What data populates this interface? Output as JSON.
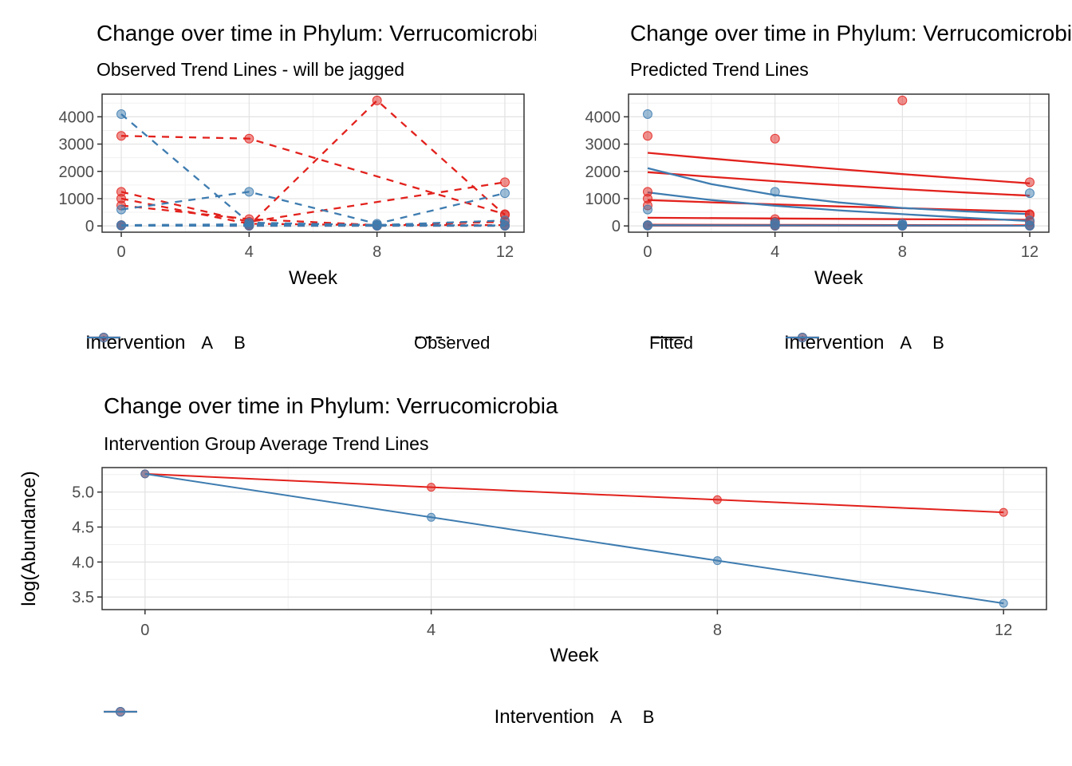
{
  "colors": {
    "A": "#E2211C",
    "B": "#3E7CB0",
    "grid_major": "#E2E2E2",
    "grid_minor": "#F0F0F0",
    "panel_border": "#333333",
    "axis_text": "#4D4D4D",
    "title_text": "#000000"
  },
  "chart_data": [
    {
      "id": "observed",
      "type": "line",
      "title": "Change over time in Phylum: Verrucomicrobia",
      "subtitle": "Observed Trend Lines - will be jagged",
      "xlabel": "Week",
      "ylabel": null,
      "xlim": [
        -0.6,
        12.6
      ],
      "ylim": [
        -230,
        4830
      ],
      "xticks": {
        "values": [
          0,
          4,
          8,
          12
        ],
        "labels": [
          "0",
          "4",
          "8",
          "12"
        ],
        "minor": [
          2,
          6,
          10
        ]
      },
      "yticks": {
        "values": [
          0,
          1000,
          2000,
          3000,
          4000
        ],
        "labels": [
          "0",
          "1000",
          "2000",
          "3000",
          "4000"
        ],
        "minor": [
          500,
          1500,
          2500,
          3500,
          4500
        ]
      },
      "grid": true,
      "line_style": "dashed",
      "series": [
        {
          "name": "A-subj1",
          "group": "A",
          "dash": true,
          "points": true,
          "x": [
            0,
            4,
            12
          ],
          "y": [
            3300,
            3200,
            430
          ]
        },
        {
          "name": "A-subj2",
          "group": "A",
          "dash": true,
          "points": true,
          "x": [
            0,
            4,
            8,
            12
          ],
          "y": [
            30,
            20,
            4600,
            400
          ]
        },
        {
          "name": "A-subj3",
          "group": "A",
          "dash": true,
          "points": true,
          "x": [
            0,
            4,
            12
          ],
          "y": [
            1250,
            150,
            1600
          ]
        },
        {
          "name": "A-subj4",
          "group": "A",
          "dash": true,
          "points": true,
          "x": [
            0,
            4,
            8,
            12
          ],
          "y": [
            1000,
            80,
            30,
            30
          ]
        },
        {
          "name": "A-subj5",
          "group": "A",
          "dash": true,
          "points": true,
          "x": [
            0,
            4,
            8,
            12
          ],
          "y": [
            750,
            250,
            30,
            150
          ]
        },
        {
          "name": "A-subj6",
          "group": "A",
          "dash": true,
          "points": true,
          "x": [
            0,
            4,
            8,
            12
          ],
          "y": [
            15,
            5,
            5,
            5
          ]
        },
        {
          "name": "B-subj1",
          "group": "B",
          "dash": true,
          "points": true,
          "x": [
            0,
            4,
            8,
            12
          ],
          "y": [
            4100,
            120,
            30,
            20
          ]
        },
        {
          "name": "B-subj2",
          "group": "B",
          "dash": true,
          "points": true,
          "x": [
            0,
            4,
            8,
            12
          ],
          "y": [
            600,
            1250,
            80,
            1200
          ]
        },
        {
          "name": "B-subj3",
          "group": "B",
          "dash": true,
          "points": true,
          "x": [
            0,
            4,
            8,
            12
          ],
          "y": [
            30,
            60,
            30,
            200
          ]
        },
        {
          "name": "B-subj4",
          "group": "B",
          "dash": true,
          "points": true,
          "x": [
            0,
            4,
            8,
            12
          ],
          "y": [
            10,
            5,
            5,
            5
          ]
        }
      ],
      "legend": {
        "groups": [
          {
            "title": "Intervention",
            "items": [
              {
                "label": "A",
                "key": "point-line",
                "group": "A"
              },
              {
                "label": "B",
                "key": "point-line",
                "group": "B"
              }
            ]
          },
          {
            "title": null,
            "items": [
              {
                "label": "Observed",
                "key": "dash"
              }
            ]
          }
        ]
      }
    },
    {
      "id": "predicted",
      "type": "line",
      "title": "Change over time in Phylum: Verrucomicrobia",
      "subtitle": "Predicted Trend Lines",
      "xlabel": "Week",
      "ylabel": null,
      "xlim": [
        -0.6,
        12.6
      ],
      "ylim": [
        -230,
        4830
      ],
      "xticks": {
        "values": [
          0,
          4,
          8,
          12
        ],
        "labels": [
          "0",
          "4",
          "8",
          "12"
        ],
        "minor": [
          2,
          6,
          10
        ]
      },
      "yticks": {
        "values": [
          0,
          1000,
          2000,
          3000,
          4000
        ],
        "labels": [
          "0",
          "1000",
          "2000",
          "3000",
          "4000"
        ],
        "minor": [
          500,
          1500,
          2500,
          3500,
          4500
        ]
      },
      "grid": true,
      "line_style": "solid",
      "series": [
        {
          "name": "A-fit1",
          "group": "A",
          "points": false,
          "x": [
            0,
            2,
            4,
            6,
            8,
            10,
            12
          ],
          "y": [
            2680,
            2470,
            2270,
            2080,
            1900,
            1730,
            1560
          ]
        },
        {
          "name": "A-fit2",
          "group": "A",
          "points": false,
          "x": [
            0,
            2,
            4,
            6,
            8,
            10,
            12
          ],
          "y": [
            1970,
            1800,
            1640,
            1490,
            1350,
            1225,
            1110
          ]
        },
        {
          "name": "A-fit3",
          "group": "A",
          "points": false,
          "x": [
            0,
            2,
            4,
            6,
            8,
            10,
            12
          ],
          "y": [
            950,
            865,
            790,
            715,
            650,
            590,
            525
          ]
        },
        {
          "name": "A-fit4",
          "group": "A",
          "points": false,
          "x": [
            0,
            4,
            8,
            12
          ],
          "y": [
            300,
            272,
            246,
            222
          ]
        },
        {
          "name": "A-fit5",
          "group": "A",
          "points": false,
          "x": [
            0,
            4,
            8,
            12
          ],
          "y": [
            45,
            36,
            29,
            23
          ]
        },
        {
          "name": "A-fit6",
          "group": "A",
          "points": false,
          "x": [
            0,
            12
          ],
          "y": [
            12,
            6
          ]
        },
        {
          "name": "B-fit1",
          "group": "B",
          "points": false,
          "x": [
            0,
            2,
            4,
            6,
            8,
            10,
            12
          ],
          "y": [
            2120,
            1530,
            1130,
            860,
            660,
            530,
            430
          ]
        },
        {
          "name": "B-fit2",
          "group": "B",
          "points": false,
          "x": [
            0,
            2,
            4,
            6,
            8,
            10,
            12
          ],
          "y": [
            1230,
            950,
            740,
            570,
            430,
            300,
            180
          ]
        },
        {
          "name": "B-fit3",
          "group": "B",
          "points": false,
          "x": [
            0,
            12
          ],
          "y": [
            25,
            10
          ]
        },
        {
          "name": "A-points",
          "group": "A",
          "line": false,
          "points": true,
          "x": [
            0,
            0,
            0,
            0,
            0,
            0,
            4,
            4,
            4,
            4,
            4,
            4,
            8,
            8,
            8,
            8,
            12,
            12,
            12,
            12,
            12,
            12
          ],
          "y": [
            3300,
            30,
            1250,
            1000,
            750,
            15,
            3200,
            20,
            150,
            80,
            250,
            5,
            4600,
            30,
            30,
            5,
            430,
            400,
            1600,
            30,
            150,
            5
          ]
        },
        {
          "name": "B-points",
          "group": "B",
          "line": false,
          "points": true,
          "x": [
            0,
            0,
            0,
            0,
            4,
            4,
            4,
            4,
            8,
            8,
            8,
            8,
            12,
            12,
            12,
            12
          ],
          "y": [
            4100,
            600,
            30,
            10,
            120,
            1250,
            60,
            5,
            30,
            80,
            30,
            5,
            20,
            1200,
            200,
            5
          ]
        }
      ],
      "legend": {
        "groups": [
          {
            "title": null,
            "items": [
              {
                "label": "Fitted",
                "key": "line"
              }
            ]
          },
          {
            "title": "Intervention",
            "items": [
              {
                "label": "A",
                "key": "point-line",
                "group": "A"
              },
              {
                "label": "B",
                "key": "point-line",
                "group": "B"
              }
            ]
          }
        ]
      }
    },
    {
      "id": "average",
      "type": "line",
      "title": "Change over time in Phylum: Verrucomicrobia",
      "subtitle": "Intervention Group Average Trend Lines",
      "xlabel": "Week",
      "ylabel": "log(Abundance)",
      "xlim": [
        -0.6,
        12.6
      ],
      "ylim": [
        3.32,
        5.35
      ],
      "xticks": {
        "values": [
          0,
          4,
          8,
          12
        ],
        "labels": [
          "0",
          "4",
          "8",
          "12"
        ],
        "minor": [
          2,
          6,
          10
        ]
      },
      "yticks": {
        "values": [
          3.5,
          4.0,
          4.5,
          5.0
        ],
        "labels": [
          "3.5",
          "4.0",
          "4.5",
          "5.0"
        ],
        "minor": [
          3.75,
          4.25,
          4.75,
          5.25
        ]
      },
      "grid": true,
      "line_style": "solid",
      "series": [
        {
          "name": "A-mean",
          "group": "A",
          "points": true,
          "x": [
            0,
            4,
            8,
            12
          ],
          "y": [
            5.26,
            5.07,
            4.89,
            4.71
          ]
        },
        {
          "name": "B-mean",
          "group": "B",
          "points": true,
          "x": [
            0,
            4,
            8,
            12
          ],
          "y": [
            5.26,
            4.64,
            4.02,
            3.41
          ]
        }
      ],
      "legend": {
        "groups": [
          {
            "title": "Intervention",
            "items": [
              {
                "label": "A",
                "key": "point-line",
                "group": "A"
              },
              {
                "label": "B",
                "key": "point-line",
                "group": "B"
              }
            ]
          }
        ]
      }
    }
  ]
}
